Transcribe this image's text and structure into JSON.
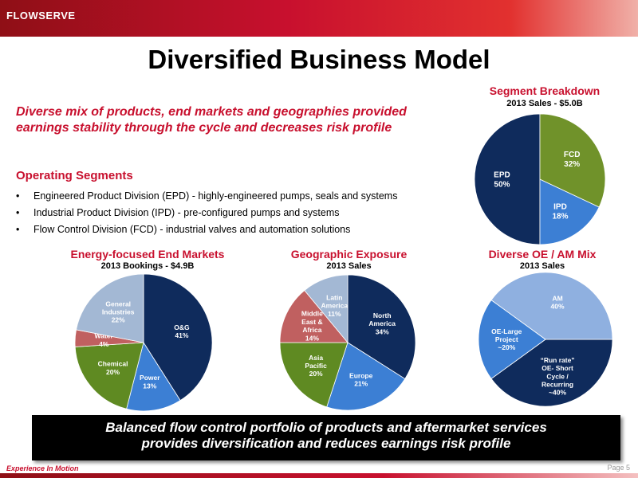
{
  "header": {
    "logo_text": "FLOWSERVE"
  },
  "title": "Diversified Business Model",
  "subtitle_line1": "Diverse mix of products, end markets and geographies provided",
  "subtitle_line2": "earnings stability through the cycle and decreases risk profile",
  "operating_segments": {
    "heading": "Operating Segments",
    "items": [
      "Engineered Product Division (EPD) - highly-engineered pumps, seals and systems",
      "Industrial Product Division (IPD) - pre-configured pumps and systems",
      "Flow Control Division (FCD) - industrial valves and automation solutions"
    ]
  },
  "chart_data": [
    {
      "type": "pie",
      "title": "Segment Breakdown",
      "subtitle": "2013 Sales - $5.0B",
      "series": [
        {
          "label": [
            "EPD",
            "50%"
          ],
          "value": 50,
          "color": "#0f2b5c",
          "text_color": "#ffffff"
        },
        {
          "label": [
            "IPD",
            "18%"
          ],
          "value": 18,
          "color": "#3c7fd4",
          "text_color": "#ffffff"
        },
        {
          "label": [
            "FCD",
            "32%"
          ],
          "value": 32,
          "color": "#70922a",
          "text_color": "#ffffff"
        }
      ]
    },
    {
      "type": "pie",
      "title": "Energy-focused End Markets",
      "subtitle": "2013 Bookings - $4.9B",
      "series": [
        {
          "label": [
            "O&G",
            "41%"
          ],
          "value": 41,
          "color": "#0f2b5c",
          "text_color": "#ffffff"
        },
        {
          "label": [
            "Power",
            "13%"
          ],
          "value": 13,
          "color": "#3c7fd4",
          "text_color": "#ffffff"
        },
        {
          "label": [
            "Chemical",
            "20%"
          ],
          "value": 20,
          "color": "#5f8a22",
          "text_color": "#ffffff"
        },
        {
          "label": [
            "Water",
            "4%"
          ],
          "value": 4,
          "color": "#c06060",
          "text_color": "#ffffff"
        },
        {
          "label": [
            "General",
            "Industries",
            "22%"
          ],
          "value": 22,
          "color": "#a3b8d4",
          "text_color": "#ffffff"
        }
      ]
    },
    {
      "type": "pie",
      "title": "Geographic Exposure",
      "subtitle": "2013 Sales",
      "series": [
        {
          "label": [
            "North",
            "America",
            "34%"
          ],
          "value": 34,
          "color": "#0f2b5c",
          "text_color": "#ffffff"
        },
        {
          "label": [
            "Europe",
            "21%"
          ],
          "value": 21,
          "color": "#3c7fd4",
          "text_color": "#ffffff"
        },
        {
          "label": [
            "Asia",
            "Pacific",
            "20%"
          ],
          "value": 20,
          "color": "#5f8a22",
          "text_color": "#ffffff"
        },
        {
          "label": [
            "Middle",
            "East &",
            "Africa",
            "14%"
          ],
          "value": 14,
          "color": "#c06060",
          "text_color": "#ffffff"
        },
        {
          "label": [
            "Latin",
            "America",
            "11%"
          ],
          "value": 11,
          "color": "#a3b8d4",
          "text_color": "#ffffff"
        }
      ]
    },
    {
      "type": "pie",
      "title": "Diverse OE / AM Mix",
      "subtitle": "2013 Sales",
      "series": [
        {
          "label": [
            "“Run rate”",
            "OE- Short",
            "Cycle /",
            "Recurring",
            "~40%"
          ],
          "value": 40,
          "color": "#0f2b5c",
          "text_color": "#ffffff"
        },
        {
          "label": [
            "OE-Large",
            "Project",
            "~20%"
          ],
          "value": 20,
          "color": "#3c7fd4",
          "text_color": "#ffffff"
        },
        {
          "label": [
            "AM",
            "40%"
          ],
          "value": 40,
          "color": "#8fb0e0",
          "text_color": "#ffffff"
        }
      ]
    }
  ],
  "banner_line1": "Balanced flow control portfolio of products and aftermarket services",
  "banner_line2": "provides diversification and reduces earnings risk profile",
  "footer": {
    "tagline": "Experience In Motion",
    "page": "Page 5"
  }
}
